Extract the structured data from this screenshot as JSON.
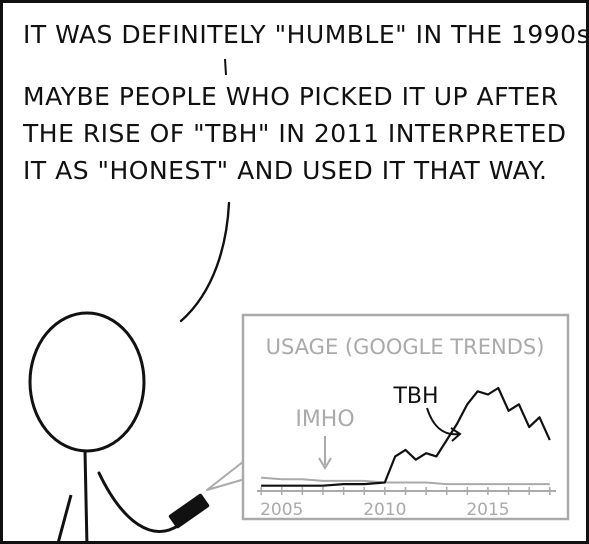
{
  "speech": {
    "line1": "IT WAS DEFINITELY \"HUMBLE\" IN THE 1990s.",
    "line2": "MAYBE PEOPLE WHO PICKED IT UP AFTER",
    "line3": "THE RISE OF \"TBH\" IN 2011 INTERPRETED",
    "line4": "IT AS \"HONEST\" AND USED IT THAT WAY."
  },
  "chart_data": {
    "type": "line",
    "title": "USAGE (GOOGLE TRENDS)",
    "x_ticks": [
      "2005",
      "2010",
      "2015"
    ],
    "series": [
      {
        "name": "IMHO",
        "color": "#aaaaaa",
        "x": [
          2004,
          2005,
          2006,
          2007,
          2008,
          2009,
          2010,
          2011,
          2012,
          2013,
          2014,
          2015,
          2016,
          2017,
          2018
        ],
        "values": [
          7,
          6,
          6,
          5,
          5,
          5,
          4,
          4,
          4,
          3,
          3,
          3,
          3,
          3,
          3
        ]
      },
      {
        "name": "TBH",
        "color": "#111111",
        "x": [
          2004,
          2005,
          2006,
          2007,
          2008,
          2009,
          2010,
          2010.5,
          2011,
          2011.5,
          2012,
          2012.5,
          2013,
          2013.5,
          2014,
          2014.5,
          2015,
          2015.5,
          2016,
          2016.5,
          2017,
          2017.5,
          2018
        ],
        "values": [
          2,
          2,
          2,
          2,
          3,
          3,
          4,
          20,
          24,
          18,
          22,
          20,
          30,
          40,
          52,
          60,
          58,
          62,
          48,
          52,
          38,
          44,
          30
        ]
      }
    ],
    "xlim": [
      2003.8,
      2018.3
    ],
    "ylim": [
      0,
      70
    ],
    "grid": false
  },
  "colors": {
    "ink": "#111111",
    "chart_gray": "#aaaaaa"
  }
}
